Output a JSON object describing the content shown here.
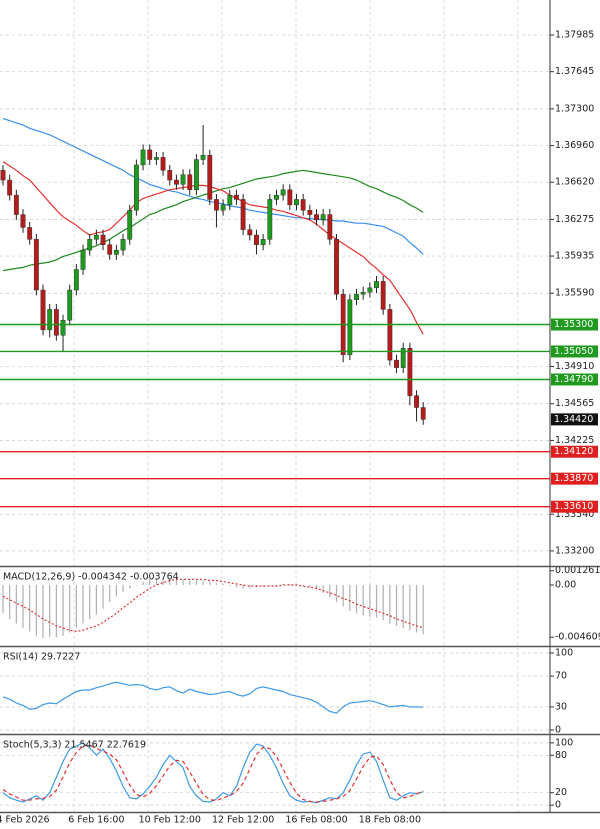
{
  "chart_data": [
    {
      "type": "candlestick",
      "categories": [
        null,
        null,
        null,
        "4 Feb 2026",
        null,
        null,
        null,
        null,
        null,
        null,
        null,
        null,
        null,
        null,
        "6 Feb 16:00",
        null,
        null,
        null,
        null,
        null,
        null,
        null,
        null,
        null,
        null,
        "10 Feb 12:00",
        null,
        null,
        null,
        null,
        null,
        null,
        null,
        null,
        null,
        null,
        "12 Feb 12:00",
        null,
        null,
        null,
        null,
        null,
        null,
        null,
        null,
        null,
        null,
        "16 Feb 08:00",
        null,
        null,
        null,
        null,
        null,
        null,
        null,
        null,
        null,
        null,
        "18 Feb 08:00",
        null,
        null,
        null,
        null,
        null
      ],
      "open": [
        1.3673,
        1.3664,
        1.365,
        1.3632,
        1.362,
        1.3609,
        1.3562,
        1.3525,
        1.3544,
        1.352,
        1.3534,
        1.3562,
        1.3581,
        1.3599,
        1.3609,
        1.3613,
        1.3604,
        1.3595,
        1.3599,
        1.3609,
        1.3636,
        1.3678,
        1.3692,
        1.3683,
        1.3685,
        1.3673,
        1.3664,
        1.366,
        1.3669,
        1.3655,
        1.3683,
        1.3687,
        1.3646,
        1.3636,
        1.3641,
        1.365,
        1.3646,
        1.3618,
        1.3613,
        1.3604,
        1.3609,
        1.3646,
        1.365,
        1.3655,
        1.3641,
        1.3646,
        1.3636,
        1.3632,
        1.3627,
        1.3632,
        1.3609,
        1.3558,
        1.3502,
        1.3553,
        1.3558,
        1.356,
        1.3564,
        1.357,
        1.3544,
        1.3497,
        1.349,
        1.3508,
        1.3464,
        1.3453
      ],
      "high": [
        1.3678,
        1.3669,
        1.3655,
        1.3637,
        1.3625,
        1.3614,
        1.3567,
        1.3549,
        1.3549,
        1.3539,
        1.3567,
        1.3586,
        1.3604,
        1.3614,
        1.3618,
        1.3618,
        1.3609,
        1.3604,
        1.3614,
        1.3641,
        1.3683,
        1.3697,
        1.3697,
        1.369,
        1.369,
        1.3678,
        1.3669,
        1.3674,
        1.3674,
        1.3688,
        1.3715,
        1.3692,
        1.3651,
        1.3646,
        1.3655,
        1.3655,
        1.3651,
        1.3623,
        1.3618,
        1.3614,
        1.3651,
        1.3655,
        1.366,
        1.366,
        1.3651,
        1.3651,
        1.3641,
        1.3637,
        1.3637,
        1.3637,
        1.3614,
        1.3563,
        1.3558,
        1.3563,
        1.3565,
        1.3569,
        1.3575,
        1.3575,
        1.3549,
        1.3502,
        1.3513,
        1.3513,
        1.3469,
        1.3458
      ],
      "low": [
        1.3659,
        1.3645,
        1.3627,
        1.3615,
        1.3604,
        1.3557,
        1.352,
        1.3518,
        1.3515,
        1.3505,
        1.3529,
        1.3557,
        1.3576,
        1.3594,
        1.3604,
        1.3599,
        1.359,
        1.359,
        1.3594,
        1.3604,
        1.3631,
        1.3673,
        1.3678,
        1.3678,
        1.3668,
        1.3659,
        1.3655,
        1.3655,
        1.365,
        1.365,
        1.3678,
        1.3641,
        1.362,
        1.3631,
        1.3636,
        1.3641,
        1.3613,
        1.3608,
        1.3595,
        1.3599,
        1.3604,
        1.3641,
        1.3645,
        1.3636,
        1.3636,
        1.3631,
        1.3627,
        1.3622,
        1.3622,
        1.3604,
        1.3553,
        1.3495,
        1.3497,
        1.3548,
        1.3553,
        1.3555,
        1.3559,
        1.3539,
        1.3492,
        1.3485,
        1.3485,
        1.3455,
        1.344,
        1.3437
      ],
      "close": [
        1.3664,
        1.365,
        1.3632,
        1.362,
        1.3609,
        1.3562,
        1.3525,
        1.3544,
        1.352,
        1.3534,
        1.3562,
        1.3581,
        1.3599,
        1.3609,
        1.3613,
        1.3604,
        1.3595,
        1.3599,
        1.3609,
        1.3636,
        1.3678,
        1.3692,
        1.3683,
        1.3685,
        1.3673,
        1.3664,
        1.366,
        1.3669,
        1.3655,
        1.3683,
        1.3687,
        1.3646,
        1.3636,
        1.3641,
        1.365,
        1.3646,
        1.3618,
        1.3613,
        1.3604,
        1.3609,
        1.3646,
        1.365,
        1.3655,
        1.3641,
        1.3646,
        1.3636,
        1.3632,
        1.3627,
        1.3632,
        1.3609,
        1.3558,
        1.3502,
        1.3553,
        1.3558,
        1.356,
        1.3564,
        1.357,
        1.3544,
        1.3497,
        1.349,
        1.3508,
        1.3464,
        1.3453,
        1.3442
      ],
      "up_color": "#1f9a1f",
      "down_color": "#b51d1d",
      "series": [
        {
          "color": "#3a8ff0",
          "values": [
            1.3721,
            1.3719,
            1.3717,
            1.3715,
            1.3712,
            1.371,
            1.3708,
            1.3706,
            1.3703,
            1.37,
            1.3697,
            1.3694,
            1.3691,
            1.3688,
            1.3685,
            1.3682,
            1.3679,
            1.3676,
            1.3673,
            1.3669,
            1.3666,
            1.3663,
            1.366,
            1.3658,
            1.3656,
            1.3654,
            1.3653,
            1.3651,
            1.3649,
            1.3647,
            1.3646,
            1.3644,
            1.3643,
            1.3642,
            1.364,
            1.3639,
            1.3638,
            1.3636,
            1.3635,
            1.3634,
            1.3633,
            1.3632,
            1.3631,
            1.363,
            1.3629,
            1.3629,
            1.3628,
            1.3628,
            1.3627,
            1.3627,
            1.3626,
            1.3626,
            1.3625,
            1.3624,
            1.3624,
            1.3623,
            1.3622,
            1.3621,
            1.3618,
            1.3615,
            1.3612,
            1.3606,
            1.3601,
            1.3595
          ]
        },
        {
          "color": "#1e8a1e",
          "values": [
            1.358,
            1.3581,
            1.3582,
            1.3583,
            1.3585,
            1.3586,
            1.3587,
            1.3588,
            1.359,
            1.3593,
            1.3595,
            1.3597,
            1.3599,
            1.3601,
            1.3603,
            1.3606,
            1.3609,
            1.3613,
            1.3617,
            1.362,
            1.3624,
            1.3628,
            1.3632,
            1.3634,
            1.3637,
            1.3639,
            1.3641,
            1.3644,
            1.3646,
            1.3648,
            1.365,
            1.3652,
            1.3654,
            1.3656,
            1.3657,
            1.3659,
            1.3661,
            1.3663,
            1.3665,
            1.3666,
            1.3667,
            1.3668,
            1.367,
            1.3671,
            1.3672,
            1.3673,
            1.3672,
            1.3671,
            1.367,
            1.3669,
            1.3668,
            1.3667,
            1.3666,
            1.3664,
            1.3661,
            1.3658,
            1.3656,
            1.3653,
            1.365,
            1.3648,
            1.3645,
            1.3641,
            1.3638,
            1.3634
          ]
        },
        {
          "color": "#e53030",
          "values": [
            1.3681,
            1.3677,
            1.3673,
            1.3668,
            1.3664,
            1.3657,
            1.365,
            1.3643,
            1.3636,
            1.363,
            1.3626,
            1.3622,
            1.3617,
            1.3613,
            1.3615,
            1.3616,
            1.3618,
            1.3624,
            1.363,
            1.3636,
            1.3643,
            1.3647,
            1.3649,
            1.3651,
            1.3653,
            1.3655,
            1.3656,
            1.3657,
            1.3658,
            1.3659,
            1.3659,
            1.3658,
            1.3656,
            1.3654,
            1.365,
            1.3647,
            1.3644,
            1.3641,
            1.364,
            1.3639,
            1.3638,
            1.3636,
            1.3635,
            1.3633,
            1.3631,
            1.3629,
            1.3627,
            1.3623,
            1.3618,
            1.3613,
            1.3609,
            1.3605,
            1.3601,
            1.3597,
            1.3593,
            1.3587,
            1.3582,
            1.3576,
            1.3571,
            1.3562,
            1.3553,
            1.3544,
            1.3532,
            1.3521
          ]
        }
      ],
      "levels": [
        {
          "value": 1.353,
          "label": "1.35300",
          "color": "#1f9a1f"
        },
        {
          "value": 1.3505,
          "label": "1.35050",
          "color": "#1f9a1f"
        },
        {
          "value": 1.3479,
          "label": "1.34790",
          "color": "#1f9a1f"
        },
        {
          "value": 1.3412,
          "label": "1.34120",
          "color": "#e02020"
        },
        {
          "value": 1.3387,
          "label": "1.33870",
          "color": "#e02020"
        },
        {
          "value": 1.3361,
          "label": "1.33610",
          "color": "#e02020"
        }
      ],
      "last_price": {
        "value": 1.3442,
        "label": "1.34420"
      },
      "ylim": [
        1.3306,
        1.3831
      ],
      "yticks": [
        1.37985,
        1.37645,
        {
          "value": 1.373,
          "label": "1.37300"
        },
        {
          "value": 1.3696,
          "label": "1.36960"
        },
        {
          "value": 1.3662,
          "label": "1.36620"
        },
        1.36275,
        1.35935,
        {
          "value": 1.3559,
          "label": "1.35590"
        },
        {
          "value": 1.3491,
          "label": "1.34910"
        },
        1.34565,
        1.34225,
        {
          "value": 1.3354,
          "label": "1.33540"
        },
        {
          "value": 1.332,
          "label": "1.33200"
        }
      ],
      "grid": true
    },
    {
      "type": "bar",
      "title": "MACD(12,26,9) -0.004342 -0.003764",
      "series": [
        {
          "color": "#b0b0b0",
          "style": "bar",
          "values": [
            -0.0025,
            -0.003,
            -0.0034,
            -0.0038,
            -0.0041,
            -0.0045,
            -0.0047,
            -0.0046,
            -0.0046,
            -0.0045,
            -0.0042,
            -0.0038,
            -0.0034,
            -0.003,
            -0.0026,
            -0.0021,
            -0.0015,
            -0.001,
            -0.0006,
            -0.0003,
            0.0,
            0.0003,
            0.0005,
            0.0006,
            0.0006,
            0.0006,
            0.0006,
            0.0005,
            0.0005,
            0.0004,
            0.0004,
            0.0003,
            0.0002,
            0.0001,
            -0.0001,
            -0.0002,
            -0.0003,
            -0.0003,
            -0.0002,
            -0.0001,
            -0.0001,
            0.0,
            0.0001,
            0.0001,
            0.0,
            -0.0001,
            -0.0002,
            -0.0004,
            -0.0007,
            -0.0011,
            -0.0015,
            -0.0019,
            -0.0023,
            -0.0025,
            -0.0027,
            -0.0028,
            -0.0029,
            -0.0031,
            -0.0034,
            -0.0036,
            -0.0038,
            -0.004,
            -0.0042,
            -0.004342
          ]
        },
        {
          "color": "#e53030",
          "style": "dotted",
          "values": [
            -0.001,
            -0.0013,
            -0.0016,
            -0.0019,
            -0.0022,
            -0.0026,
            -0.003,
            -0.0033,
            -0.0036,
            -0.0038,
            -0.004,
            -0.0041,
            -0.004,
            -0.0038,
            -0.0036,
            -0.0033,
            -0.0029,
            -0.0025,
            -0.002,
            -0.0016,
            -0.0011,
            -0.0007,
            -0.0003,
            0.0,
            0.0002,
            0.0004,
            0.0005,
            0.0005,
            0.0005,
            0.0005,
            0.0005,
            0.0004,
            0.0004,
            0.0003,
            0.0002,
            0.0001,
            0.0,
            -0.0001,
            -0.0001,
            -0.0001,
            -0.0001,
            -0.0001,
            0.0,
            0.0,
            0.0,
            -0.0001,
            -0.0002,
            -0.0003,
            -0.0005,
            -0.0007,
            -0.0009,
            -0.0012,
            -0.0014,
            -0.0017,
            -0.0019,
            -0.0021,
            -0.0023,
            -0.0025,
            -0.0027,
            -0.003,
            -0.0032,
            -0.0034,
            -0.0036,
            -0.003764
          ]
        }
      ],
      "ylim": [
        -0.0053,
        0.0015
      ],
      "yticks": [
        0.001261,
        {
          "value": 0,
          "label": "0.00"
        },
        -0.004609
      ]
    },
    {
      "type": "line",
      "title": "RSI(14) 29.7227",
      "series": [
        {
          "color": "#3d9ae8",
          "style": "solid",
          "values": [
            43,
            40,
            35,
            32,
            27,
            28,
            33,
            35,
            34,
            40,
            45,
            50,
            52,
            52,
            55,
            57,
            60,
            62,
            60,
            58,
            59,
            58,
            54,
            52,
            55,
            56,
            51,
            48,
            53,
            50,
            48,
            46,
            47,
            49,
            50,
            46,
            44,
            47,
            54,
            56,
            54,
            52,
            50,
            46,
            44,
            42,
            40,
            36,
            30,
            24,
            22,
            30,
            35,
            36,
            37,
            38,
            36,
            33,
            30,
            31,
            32,
            30,
            30,
            29.7227
          ]
        }
      ],
      "ylim": [
        -3.9,
        106.5
      ],
      "yticks": [
        100,
        70,
        30,
        0
      ]
    },
    {
      "type": "line",
      "title": "Stoch(5,3,3) 21.5467 22.7619",
      "series": [
        {
          "color": "#3d9ae8",
          "style": "solid",
          "values": [
            20,
            12,
            8,
            5,
            10,
            15,
            8,
            20,
            45,
            70,
            90,
            95,
            100,
            92,
            80,
            90,
            75,
            55,
            30,
            12,
            10,
            18,
            30,
            45,
            65,
            80,
            70,
            60,
            30,
            15,
            6,
            5,
            10,
            20,
            15,
            30,
            60,
            85,
            98,
            95,
            80,
            60,
            35,
            15,
            8,
            5,
            6,
            4,
            8,
            12,
            10,
            20,
            40,
            65,
            82,
            85,
            70,
            40,
            12,
            8,
            15,
            20,
            18,
            21.5467
          ]
        },
        {
          "color": "#e53030",
          "style": "dashed",
          "values": [
            25,
            18,
            13,
            8,
            8,
            10,
            11,
            14,
            24,
            45,
            68,
            85,
            95,
            96,
            91,
            87,
            82,
            73,
            53,
            32,
            17,
            13,
            19,
            31,
            47,
            63,
            72,
            70,
            53,
            35,
            17,
            9,
            7,
            12,
            15,
            22,
            35,
            58,
            81,
            93,
            91,
            78,
            58,
            37,
            19,
            9,
            6,
            5,
            6,
            8,
            10,
            14,
            23,
            42,
            62,
            77,
            79,
            65,
            41,
            20,
            12,
            14,
            18,
            22.7619
          ]
        }
      ],
      "ylim": [
        -11,
        111
      ],
      "yticks": [
        100,
        80,
        20,
        0
      ]
    }
  ]
}
